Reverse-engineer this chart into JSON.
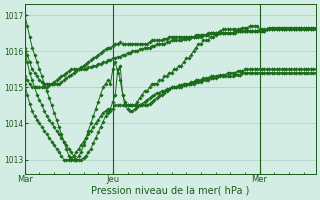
{
  "background_color": "#d4ede4",
  "grid_color": "#a8cfc0",
  "line_color": "#1a6b1a",
  "marker_color": "#1a6b1a",
  "xlabel": "Pression niveau de la mer( hPa )",
  "ylim": [
    1012.6,
    1017.3
  ],
  "yticks": [
    1013,
    1014,
    1015,
    1016,
    1017
  ],
  "xtick_labels": [
    "Mar",
    "Jeu",
    "Mer"
  ],
  "xtick_positions": [
    0,
    36,
    96
  ],
  "vline_positions": [
    0,
    36,
    96
  ],
  "total_points": 120,
  "series": [
    [
      1017.0,
      1016.7,
      1016.4,
      1016.1,
      1015.9,
      1015.7,
      1015.5,
      1015.3,
      1015.1,
      1014.9,
      1014.7,
      1014.5,
      1014.3,
      1014.1,
      1013.9,
      1013.7,
      1013.5,
      1013.3,
      1013.1,
      1013.0,
      1013.0,
      1013.0,
      1013.1,
      1013.2,
      1013.4,
      1013.6,
      1013.8,
      1014.0,
      1014.2,
      1014.4,
      1014.6,
      1014.8,
      1015.0,
      1015.1,
      1015.2,
      1015.1,
      1015.5,
      1015.7,
      1015.4,
      1015.6,
      1014.8,
      1014.6,
      1014.5,
      1014.5,
      1014.5,
      1014.5,
      1014.6,
      1014.7,
      1014.8,
      1014.9,
      1014.9,
      1015.0,
      1015.1,
      1015.1,
      1015.1,
      1015.2,
      1015.2,
      1015.3,
      1015.3,
      1015.4,
      1015.4,
      1015.5,
      1015.5,
      1015.6,
      1015.6,
      1015.7,
      1015.8,
      1015.8,
      1015.9,
      1016.0,
      1016.1,
      1016.2,
      1016.2,
      1016.3,
      1016.3,
      1016.3,
      1016.4,
      1016.4,
      1016.45,
      1016.5,
      1016.55,
      1016.6,
      1016.6,
      1016.6,
      1016.6,
      1016.6,
      1016.6,
      1016.6,
      1016.6,
      1016.65,
      1016.65,
      1016.65,
      1016.7,
      1016.7,
      1016.7,
      1016.7,
      1016.6,
      1016.6,
      1016.6,
      1016.6,
      1016.65,
      1016.65,
      1016.65,
      1016.65,
      1016.65,
      1016.65,
      1016.65,
      1016.65,
      1016.65,
      1016.65,
      1016.65,
      1016.65,
      1016.65,
      1016.65,
      1016.65,
      1016.65,
      1016.65,
      1016.65,
      1016.65,
      1016.65
    ],
    [
      1016.1,
      1015.9,
      1015.7,
      1015.5,
      1015.4,
      1015.3,
      1015.2,
      1015.15,
      1015.1,
      1015.1,
      1015.1,
      1015.1,
      1015.1,
      1015.1,
      1015.1,
      1015.15,
      1015.2,
      1015.25,
      1015.3,
      1015.35,
      1015.4,
      1015.45,
      1015.5,
      1015.55,
      1015.6,
      1015.65,
      1015.7,
      1015.75,
      1015.8,
      1015.85,
      1015.9,
      1015.95,
      1016.0,
      1016.05,
      1016.1,
      1016.1,
      1016.15,
      1016.2,
      1016.2,
      1016.25,
      1016.2,
      1016.2,
      1016.2,
      1016.2,
      1016.2,
      1016.2,
      1016.2,
      1016.2,
      1016.2,
      1016.2,
      1016.2,
      1016.25,
      1016.3,
      1016.3,
      1016.3,
      1016.3,
      1016.3,
      1016.35,
      1016.35,
      1016.4,
      1016.4,
      1016.4,
      1016.4,
      1016.4,
      1016.4,
      1016.4,
      1016.4,
      1016.4,
      1016.4,
      1016.4,
      1016.45,
      1016.45,
      1016.45,
      1016.45,
      1016.45,
      1016.5,
      1016.5,
      1016.5,
      1016.5,
      1016.5,
      1016.5,
      1016.5,
      1016.5,
      1016.5,
      1016.5,
      1016.5,
      1016.55,
      1016.55,
      1016.55,
      1016.55,
      1016.55,
      1016.55,
      1016.55,
      1016.55,
      1016.55,
      1016.55,
      1016.55,
      1016.55,
      1016.55,
      1016.6,
      1016.6,
      1016.6,
      1016.6,
      1016.6,
      1016.6,
      1016.6,
      1016.6,
      1016.6,
      1016.6,
      1016.6,
      1016.6,
      1016.6,
      1016.6,
      1016.6,
      1016.6,
      1016.6,
      1016.6,
      1016.6,
      1016.6,
      1016.6
    ],
    [
      1015.3,
      1015.2,
      1015.1,
      1015.0,
      1015.0,
      1015.0,
      1015.0,
      1015.0,
      1015.0,
      1015.0,
      1015.05,
      1015.1,
      1015.15,
      1015.2,
      1015.25,
      1015.3,
      1015.35,
      1015.4,
      1015.45,
      1015.5,
      1015.5,
      1015.5,
      1015.5,
      1015.5,
      1015.5,
      1015.5,
      1015.55,
      1015.55,
      1015.6,
      1015.6,
      1015.65,
      1015.65,
      1015.7,
      1015.7,
      1015.75,
      1015.75,
      1015.8,
      1015.8,
      1015.85,
      1015.85,
      1015.9,
      1015.9,
      1015.95,
      1015.95,
      1016.0,
      1016.0,
      1016.0,
      1016.05,
      1016.05,
      1016.1,
      1016.1,
      1016.1,
      1016.15,
      1016.15,
      1016.2,
      1016.2,
      1016.2,
      1016.2,
      1016.25,
      1016.25,
      1016.3,
      1016.3,
      1016.3,
      1016.3,
      1016.3,
      1016.35,
      1016.35,
      1016.35,
      1016.4,
      1016.4,
      1016.4,
      1016.4,
      1016.4,
      1016.45,
      1016.45,
      1016.45,
      1016.5,
      1016.5,
      1016.5,
      1016.5,
      1016.5,
      1016.5,
      1016.5,
      1016.5,
      1016.5,
      1016.5,
      1016.5,
      1016.55,
      1016.55,
      1016.55,
      1016.55,
      1016.55,
      1016.55,
      1016.55,
      1016.55,
      1016.55,
      1016.55,
      1016.55,
      1016.55,
      1016.6,
      1016.6,
      1016.6,
      1016.6,
      1016.6,
      1016.6,
      1016.6,
      1016.6,
      1016.6,
      1016.6,
      1016.6,
      1016.6,
      1016.6,
      1016.6,
      1016.6,
      1016.6,
      1016.6,
      1016.6,
      1016.6,
      1016.6,
      1016.6
    ],
    [
      1015.1,
      1014.8,
      1014.55,
      1014.35,
      1014.2,
      1014.1,
      1014.0,
      1013.9,
      1013.8,
      1013.7,
      1013.6,
      1013.5,
      1013.4,
      1013.3,
      1013.2,
      1013.1,
      1013.0,
      1013.0,
      1013.0,
      1013.05,
      1013.1,
      1013.2,
      1013.3,
      1013.4,
      1013.5,
      1013.6,
      1013.7,
      1013.8,
      1013.9,
      1014.0,
      1014.1,
      1014.2,
      1014.3,
      1014.35,
      1014.4,
      1014.4,
      1014.6,
      1014.8,
      1015.5,
      1015.2,
      1014.8,
      1014.5,
      1014.4,
      1014.35,
      1014.35,
      1014.4,
      1014.45,
      1014.5,
      1014.55,
      1014.6,
      1014.65,
      1014.7,
      1014.75,
      1014.8,
      1014.85,
      1014.85,
      1014.9,
      1014.9,
      1014.95,
      1014.95,
      1015.0,
      1015.0,
      1015.0,
      1015.05,
      1015.05,
      1015.1,
      1015.1,
      1015.1,
      1015.15,
      1015.15,
      1015.2,
      1015.2,
      1015.2,
      1015.25,
      1015.25,
      1015.25,
      1015.3,
      1015.3,
      1015.3,
      1015.3,
      1015.35,
      1015.35,
      1015.35,
      1015.4,
      1015.4,
      1015.4,
      1015.4,
      1015.45,
      1015.45,
      1015.45,
      1015.5,
      1015.5,
      1015.5,
      1015.5,
      1015.5,
      1015.5,
      1015.5,
      1015.5,
      1015.5,
      1015.5,
      1015.5,
      1015.5,
      1015.5,
      1015.5,
      1015.5,
      1015.5,
      1015.5,
      1015.5,
      1015.5,
      1015.5,
      1015.5,
      1015.5,
      1015.5,
      1015.5,
      1015.5,
      1015.5,
      1015.5,
      1015.5,
      1015.5,
      1015.5
    ],
    [
      1016.0,
      1015.7,
      1015.4,
      1015.2,
      1015.0,
      1014.8,
      1014.65,
      1014.5,
      1014.35,
      1014.2,
      1014.1,
      1014.0,
      1013.9,
      1013.8,
      1013.7,
      1013.6,
      1013.5,
      1013.4,
      1013.3,
      1013.2,
      1013.1,
      1013.0,
      1013.0,
      1013.0,
      1013.05,
      1013.1,
      1013.2,
      1013.3,
      1013.45,
      1013.6,
      1013.75,
      1013.9,
      1014.05,
      1014.2,
      1014.3,
      1014.35,
      1014.4,
      1014.5,
      1014.5,
      1014.5,
      1014.5,
      1014.5,
      1014.5,
      1014.5,
      1014.5,
      1014.5,
      1014.5,
      1014.5,
      1014.5,
      1014.5,
      1014.5,
      1014.55,
      1014.6,
      1014.65,
      1014.7,
      1014.75,
      1014.8,
      1014.85,
      1014.9,
      1014.95,
      1015.0,
      1015.0,
      1015.0,
      1015.0,
      1015.0,
      1015.05,
      1015.05,
      1015.1,
      1015.1,
      1015.1,
      1015.15,
      1015.15,
      1015.15,
      1015.2,
      1015.2,
      1015.2,
      1015.25,
      1015.25,
      1015.25,
      1015.3,
      1015.3,
      1015.3,
      1015.3,
      1015.3,
      1015.3,
      1015.3,
      1015.35,
      1015.35,
      1015.35,
      1015.4,
      1015.4,
      1015.4,
      1015.4,
      1015.4,
      1015.4,
      1015.4,
      1015.4,
      1015.4,
      1015.4,
      1015.4,
      1015.4,
      1015.4,
      1015.4,
      1015.4,
      1015.4,
      1015.4,
      1015.4,
      1015.4,
      1015.4,
      1015.4,
      1015.4,
      1015.4,
      1015.4,
      1015.4,
      1015.4,
      1015.4,
      1015.4,
      1015.4,
      1015.4,
      1015.4
    ]
  ]
}
